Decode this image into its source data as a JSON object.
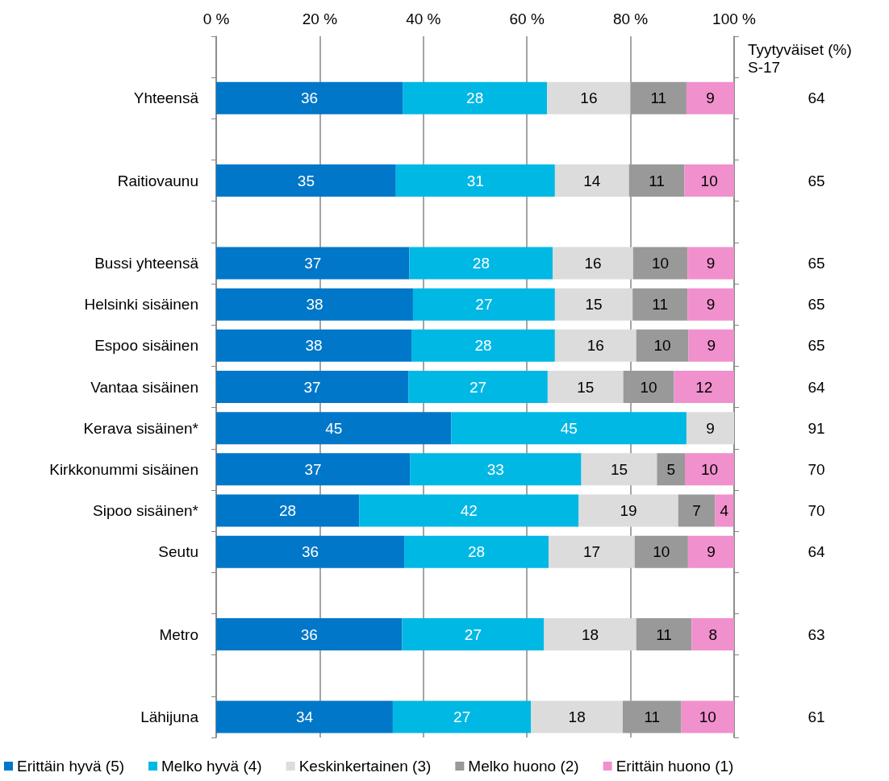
{
  "chart_data": {
    "type": "bar",
    "orientation": "horizontal",
    "stacked": true,
    "categories": [
      null,
      "Yhteensä",
      null,
      "Raitiovaunu",
      null,
      "Bussi yhteensä",
      "Helsinki sisäinen",
      "Espoo sisäinen",
      "Vantaa sisäinen",
      "Kerava sisäinen*",
      "Kirkkonummi sisäinen",
      "Sipoo sisäinen*",
      "Seutu",
      null,
      "Metro",
      null,
      "Lähijuna"
    ],
    "series": [
      {
        "name": "Erittäin hyvä (5)",
        "color": "#0077c8",
        "values": [
          null,
          36.0,
          null,
          34.7,
          null,
          37.3,
          38.0,
          37.7,
          37.1,
          45.4,
          37.4,
          27.6,
          36.3,
          null,
          35.9,
          null,
          34.1
        ],
        "value_labels": [
          null,
          "36",
          null,
          "35",
          null,
          "37",
          "38",
          "38",
          "37",
          "45",
          "37",
          "28",
          "36",
          null,
          "36",
          null,
          "34"
        ]
      },
      {
        "name": "Melko hyvä (4)",
        "color": "#00b8e4",
        "values": [
          null,
          27.9,
          null,
          30.7,
          null,
          27.7,
          27.4,
          27.7,
          26.9,
          45.4,
          33.1,
          42.4,
          27.9,
          null,
          27.4,
          null,
          26.7
        ],
        "value_labels": [
          null,
          "28",
          null,
          "31",
          null,
          "28",
          "27",
          "28",
          "27",
          "45",
          "33",
          "42",
          "28",
          null,
          "27",
          null,
          "27"
        ]
      },
      {
        "name": "Keskinkertainen (3)",
        "color": "#dcdcdc",
        "values": [
          null,
          16.1,
          null,
          14.3,
          null,
          15.5,
          15.0,
          15.7,
          14.6,
          9.2,
          14.6,
          19.2,
          16.6,
          null,
          17.8,
          null,
          17.7
        ],
        "value_labels": [
          null,
          "16",
          null,
          "14",
          null,
          "16",
          "15",
          "16",
          "15",
          "9",
          "15",
          "19",
          "17",
          null,
          "18",
          null,
          "18"
        ]
      },
      {
        "name": "Melko huono (2)",
        "color": "#999999",
        "values": [
          null,
          10.8,
          null,
          10.7,
          null,
          10.5,
          10.6,
          10.1,
          9.8,
          null,
          5.4,
          7.1,
          10.3,
          null,
          10.7,
          null,
          11.3
        ],
        "value_labels": [
          null,
          "11",
          null,
          "11",
          null,
          "10",
          "11",
          "10",
          "10",
          null,
          "5",
          "7",
          "10",
          null,
          "11",
          null,
          "11"
        ]
      },
      {
        "name": "Erittäin huono (1)",
        "color": "#f090cc",
        "values": [
          null,
          9.2,
          null,
          9.6,
          null,
          9.0,
          9.0,
          8.8,
          11.6,
          null,
          9.5,
          3.6,
          8.9,
          null,
          8.2,
          null,
          10.2
        ],
        "value_labels": [
          null,
          "9",
          null,
          "10",
          null,
          "9",
          "9",
          "9",
          "12",
          null,
          "10",
          "4",
          "9",
          null,
          "8",
          null,
          "10"
        ]
      }
    ],
    "xlim": [
      0,
      100
    ],
    "xticks": [
      {
        "value": 0,
        "label": "0 %"
      },
      {
        "value": 20,
        "label": "20 %"
      },
      {
        "value": 40,
        "label": "40 %"
      },
      {
        "value": 60,
        "label": "60 %"
      },
      {
        "value": 80,
        "label": "80 %"
      },
      {
        "value": 100,
        "label": "100 %"
      }
    ],
    "grid": "x",
    "legend": "bottom",
    "annotations": [
      "Tyytyväiset (%)\nS-17",
      "64",
      "65",
      "65",
      "65",
      "65",
      "64",
      "91",
      "70",
      "70",
      "64",
      "63",
      "61"
    ]
  }
}
